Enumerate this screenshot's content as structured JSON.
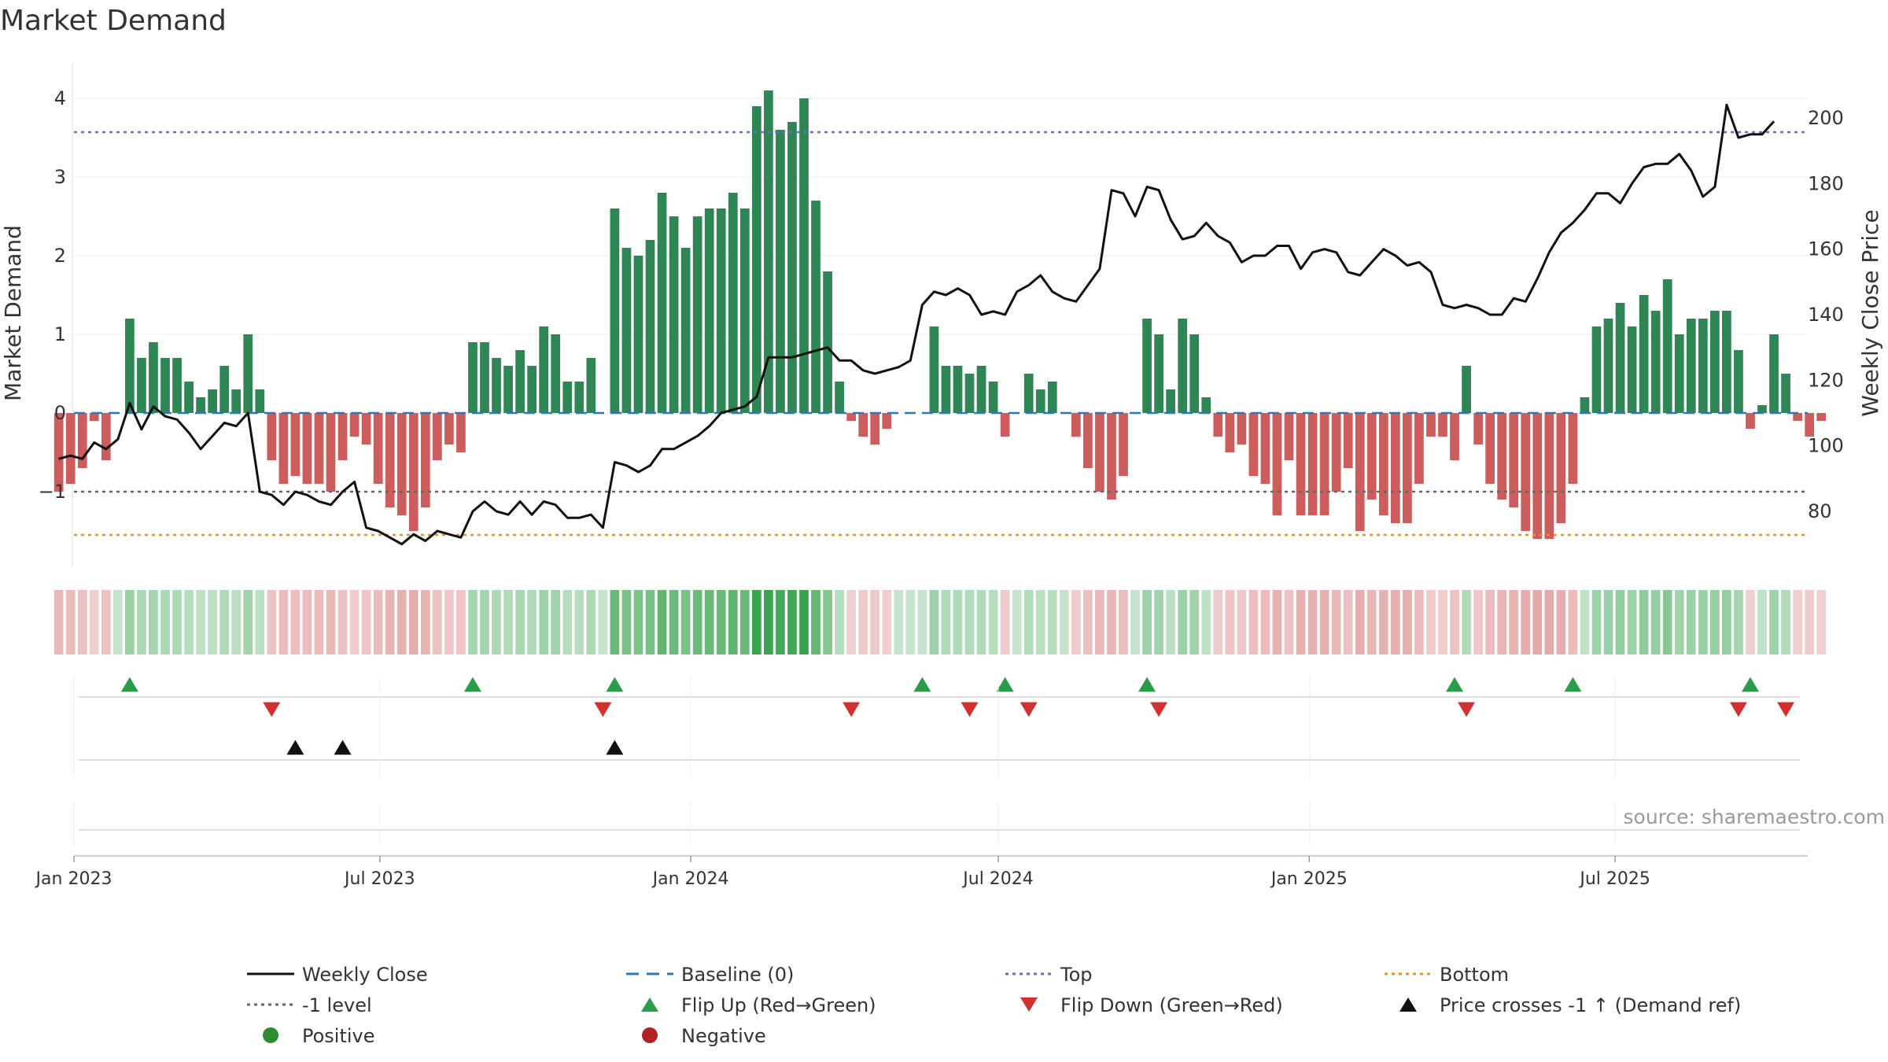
{
  "chart_data": {
    "type": "bar+line",
    "title": "Market Demand",
    "ylabel_left": "Market Demand",
    "ylabel_right": "Weekly Close Price",
    "ylim_left": [
      -1.9,
      4.4
    ],
    "ylim_right": [
      61,
      212
    ],
    "yticks_left": [
      "4",
      "3",
      "2",
      "1",
      "0",
      "−1"
    ],
    "yticks_left_values": [
      4,
      3,
      2,
      1,
      0,
      -1
    ],
    "yticks_right": [
      "200",
      "180",
      "160",
      "140",
      "120",
      "100",
      "80"
    ],
    "yticks_right_values": [
      200,
      180,
      160,
      140,
      120,
      100,
      80
    ],
    "x_start": "2023-01-01",
    "x_end": "2025-10-23",
    "x_ticks": [
      {
        "label": "Jan 2023",
        "date": "2023-01-01"
      },
      {
        "label": "Jul 2023",
        "date": "2023-07-01"
      },
      {
        "label": "Jan 2024",
        "date": "2024-01-01"
      },
      {
        "label": "Jul 2024",
        "date": "2024-07-01"
      },
      {
        "label": "Jan 2025",
        "date": "2025-01-01"
      },
      {
        "label": "Jul 2025",
        "date": "2025-07-01"
      }
    ],
    "week1": "2022-12-23",
    "demand": [
      -1.0,
      -0.9,
      -0.7,
      -0.1,
      -0.6,
      0.0,
      1.2,
      0.7,
      0.9,
      0.7,
      0.7,
      0.4,
      0.2,
      0.3,
      0.6,
      0.3,
      1.0,
      0.3,
      -0.6,
      -0.9,
      -0.8,
      -0.9,
      -0.9,
      -1.0,
      -0.6,
      -0.3,
      -0.4,
      -0.9,
      -1.2,
      -1.3,
      -1.5,
      -1.2,
      -0.6,
      -0.4,
      -0.5,
      0.9,
      0.9,
      0.7,
      0.6,
      0.8,
      0.6,
      1.1,
      1.0,
      0.4,
      0.4,
      0.7,
      0.0,
      2.6,
      2.1,
      2.0,
      2.2,
      2.8,
      2.5,
      2.1,
      2.5,
      2.6,
      2.6,
      2.8,
      2.6,
      3.9,
      4.1,
      3.6,
      3.7,
      4.0,
      2.7,
      1.8,
      0.4,
      -0.1,
      -0.3,
      -0.4,
      -0.2,
      0.0,
      0.0,
      0.0,
      1.1,
      0.6,
      0.6,
      0.5,
      0.6,
      0.4,
      -0.3,
      0.0,
      0.5,
      0.3,
      0.4,
      0.0,
      -0.3,
      -0.7,
      -1.0,
      -1.1,
      -0.8,
      0.0,
      1.2,
      1.0,
      0.3,
      1.2,
      1.0,
      0.2,
      -0.3,
      -0.5,
      -0.4,
      -0.8,
      -0.9,
      -1.3,
      -0.6,
      -1.3,
      -1.3,
      -1.3,
      -1.0,
      -0.7,
      -1.5,
      -1.1,
      -1.3,
      -1.4,
      -1.4,
      -0.9,
      -0.3,
      -0.3,
      -0.6,
      0.6,
      -0.4,
      -0.9,
      -1.1,
      -1.2,
      -1.5,
      -1.6,
      -1.6,
      -1.4,
      -0.9,
      0.2,
      1.1,
      1.2,
      1.4,
      1.1,
      1.5,
      1.3,
      1.7,
      1.0,
      1.2,
      1.2,
      1.3,
      1.3,
      0.8,
      -0.2,
      0.1,
      1.0,
      0.5,
      -0.1,
      -0.3,
      -0.1
    ],
    "close": [
      96,
      97,
      96,
      101,
      99,
      102,
      113,
      105,
      112,
      109,
      108,
      104,
      99,
      103,
      107,
      106,
      110,
      86,
      85,
      82,
      86,
      85,
      83,
      82,
      86,
      89,
      75,
      74,
      72,
      70,
      73,
      71,
      74,
      73,
      72,
      80,
      83,
      80,
      79,
      83,
      79,
      83,
      82,
      78,
      78,
      79,
      75,
      95,
      94,
      92,
      94,
      99,
      99,
      101,
      103,
      106,
      110,
      111,
      112,
      115,
      127,
      127,
      127,
      128,
      129,
      130,
      126,
      126,
      123,
      122,
      123,
      124,
      126,
      143,
      147,
      146,
      148,
      146,
      140,
      141,
      140,
      147,
      149,
      152,
      147,
      145,
      144,
      149,
      154,
      178,
      177,
      170,
      179,
      178,
      169,
      163,
      164,
      168,
      164,
      162,
      156,
      158,
      158,
      161,
      161,
      154,
      159,
      160,
      159,
      153,
      152,
      156,
      160,
      158,
      155,
      156,
      153,
      143,
      142,
      143,
      142,
      140,
      140,
      145,
      144,
      151,
      159,
      165,
      168,
      172,
      177,
      177,
      174,
      180,
      185,
      186,
      186,
      189,
      184,
      176,
      179,
      204,
      194,
      195,
      195,
      199
    ],
    "flip_up_weeks": [
      6,
      35,
      47,
      73,
      80,
      92,
      118,
      128,
      143
    ],
    "flip_down_weeks": [
      18,
      46,
      67,
      77,
      82,
      93,
      119,
      142,
      146
    ],
    "cross_up_weeks": [
      20,
      24,
      47
    ],
    "top_level": 3.57,
    "bottom_level": -1.55,
    "neg1_level": -1.0,
    "source": "source: sharemaestro.com",
    "colors": {
      "positive": "#2e8655",
      "negative": "#cd5c5c",
      "price": "#111111",
      "baseline": "#2a7ab5",
      "top": "#6a6ac8",
      "bottom": "#e8902a",
      "neg1": "#666666",
      "flip_up": "#2a9d4a",
      "flip_down": "#d43030",
      "cross": "#111111",
      "legend_positive": "#2e8b2e",
      "legend_negative": "#b22222"
    },
    "legend": [
      {
        "label": "Weekly Close",
        "kind": "solid",
        "color": "#111111"
      },
      {
        "label": "Baseline (0)",
        "kind": "longdash",
        "color": "#2a7ab5"
      },
      {
        "label": "Top",
        "kind": "dot",
        "color": "#6a6ac8"
      },
      {
        "label": "Bottom",
        "kind": "dot",
        "color": "#e8902a"
      },
      {
        "label": "-1 level",
        "kind": "dot",
        "color": "#666666"
      },
      {
        "label": "Flip Up (Red→Green)",
        "kind": "tri-up",
        "color": "#2a9d4a"
      },
      {
        "label": "Flip Down (Green→Red)",
        "kind": "tri-down",
        "color": "#d43030"
      },
      {
        "label": "Price crosses -1 ↑ (Demand ref)",
        "kind": "tri-up",
        "color": "#111111"
      },
      {
        "label": "Positive",
        "kind": "circle",
        "color": "#2e8b2e"
      },
      {
        "label": "Negative",
        "kind": "circle",
        "color": "#b22222"
      }
    ]
  }
}
